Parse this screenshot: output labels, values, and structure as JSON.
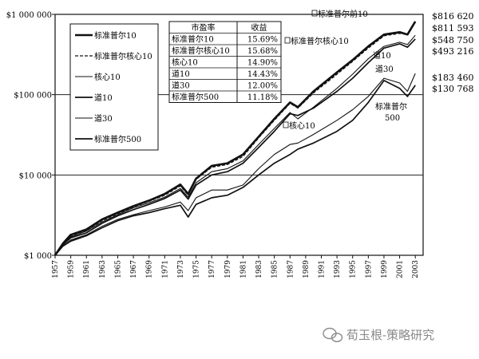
{
  "chart_data": {
    "type": "line",
    "title": "",
    "xlabel": "",
    "ylabel": "",
    "yscale": "log",
    "ylim": [
      1000,
      1000000
    ],
    "xlim": [
      1957,
      2004
    ],
    "grid": "horizontal lines at $10 000 and $100 000",
    "legend_placement": "top-left",
    "y_ticks": [
      {
        "value": 1000,
        "label": "$1 000"
      },
      {
        "value": 10000,
        "label": "$10 000"
      },
      {
        "value": 100000,
        "label": "$100 000"
      },
      {
        "value": 1000000,
        "label": "$1 000 000"
      }
    ],
    "x_ticks": [
      "1957",
      "1959",
      "1961",
      "1963",
      "1965",
      "1967",
      "1969",
      "1971",
      "1973",
      "1975",
      "1977",
      "1979",
      "1981",
      "1983",
      "1985",
      "1987",
      "1989",
      "1991",
      "1993",
      "1995",
      "1997",
      "1999",
      "2001",
      "2003"
    ],
    "legend": [
      "标准普尔10",
      "标准普尔核心10",
      "核心10",
      "道10",
      "道30",
      "标准普尔500"
    ],
    "table": {
      "headers": [
        "市盈率",
        "收益"
      ],
      "rows": [
        [
          "标准普尔10",
          "15.69%"
        ],
        [
          "标准普尔核心10",
          "15.68%"
        ],
        [
          "核心10",
          "14.90%"
        ],
        [
          "道10",
          "14.43%"
        ],
        [
          "道30",
          "12.00%"
        ],
        [
          "标准普尔500",
          "11.18%"
        ]
      ]
    },
    "end_labels": [
      "$816 620",
      "$811 593",
      "$548 750",
      "$493 216",
      "$183 460",
      "$130 768"
    ],
    "annotations": [
      "标准普尔前10",
      "标准普尔核心10",
      "道10",
      "道30",
      "核心10",
      "标准普尔500"
    ],
    "series": [
      {
        "name": "标准普尔10",
        "style": "thick",
        "x": [
          1957,
          1958,
          1959,
          1961,
          1963,
          1965,
          1967,
          1969,
          1971,
          1973,
          1974,
          1975,
          1977,
          1979,
          1981,
          1983,
          1985,
          1987,
          1988,
          1990,
          1993,
          1995,
          1997,
          1999,
          2001,
          2002,
          2003
        ],
        "y": [
          1000,
          1400,
          1800,
          2100,
          2800,
          3400,
          4100,
          4800,
          5800,
          7600,
          5800,
          9000,
          13000,
          14000,
          18000,
          30000,
          50000,
          80000,
          70000,
          110000,
          190000,
          270000,
          400000,
          560000,
          600000,
          560000,
          816620
        ]
      },
      {
        "name": "标准普尔核心10",
        "style": "dashed",
        "x": [
          1957,
          1958,
          1959,
          1961,
          1963,
          1965,
          1967,
          1969,
          1971,
          1973,
          1974,
          1975,
          1977,
          1979,
          1981,
          1983,
          1985,
          1987,
          1988,
          1990,
          1993,
          1995,
          1997,
          1999,
          2001,
          2002,
          2003
        ],
        "y": [
          1000,
          1400,
          1750,
          2050,
          2700,
          3300,
          4000,
          4700,
          5600,
          7300,
          5600,
          8800,
          12500,
          13500,
          17000,
          29000,
          48000,
          78000,
          68000,
          105000,
          180000,
          260000,
          380000,
          540000,
          580000,
          560000,
          811593
        ]
      },
      {
        "name": "核心10",
        "style": "thin",
        "x": [
          1957,
          1958,
          1959,
          1961,
          1963,
          1965,
          1967,
          1969,
          1971,
          1973,
          1974,
          1975,
          1977,
          1979,
          1981,
          1983,
          1985,
          1987,
          1988,
          1990,
          1993,
          1995,
          1997,
          1999,
          2001,
          2002,
          2003
        ],
        "y": [
          1000,
          1350,
          1700,
          2000,
          2600,
          3200,
          3900,
          4500,
          5300,
          6800,
          5300,
          8000,
          11000,
          12000,
          15000,
          24000,
          38000,
          60000,
          50000,
          70000,
          120000,
          180000,
          280000,
          400000,
          450000,
          420000,
          548750
        ]
      },
      {
        "name": "道10",
        "style": "medium",
        "x": [
          1957,
          1958,
          1959,
          1961,
          1963,
          1965,
          1967,
          1969,
          1971,
          1973,
          1974,
          1975,
          1977,
          1979,
          1981,
          1983,
          1985,
          1987,
          1988,
          1990,
          1993,
          1995,
          1997,
          1999,
          2001,
          2002,
          2003
        ],
        "y": [
          1000,
          1350,
          1650,
          1900,
          2500,
          3100,
          3700,
          4300,
          5100,
          6500,
          5000,
          7500,
          10000,
          11000,
          14000,
          22000,
          35000,
          58000,
          55000,
          68000,
          110000,
          160000,
          250000,
          380000,
          430000,
          390000,
          493216
        ]
      },
      {
        "name": "道30",
        "style": "thin",
        "x": [
          1957,
          1958,
          1959,
          1961,
          1963,
          1965,
          1967,
          1969,
          1971,
          1973,
          1974,
          1975,
          1977,
          1979,
          1981,
          1983,
          1985,
          1987,
          1988,
          1990,
          1993,
          1995,
          1997,
          1999,
          2001,
          2002,
          2003
        ],
        "y": [
          1000,
          1300,
          1550,
          1800,
          2300,
          2800,
          3200,
          3600,
          4000,
          4600,
          3600,
          5200,
          6500,
          6500,
          7500,
          12000,
          18000,
          24000,
          25000,
          32000,
          48000,
          65000,
          95000,
          160000,
          140000,
          110000,
          183460
        ]
      },
      {
        "name": "标准普尔500",
        "style": "medium",
        "x": [
          1957,
          1958,
          1959,
          1961,
          1963,
          1965,
          1967,
          1969,
          1971,
          1973,
          1974,
          1975,
          1977,
          1979,
          1981,
          1983,
          1985,
          1987,
          1988,
          1990,
          1993,
          1995,
          1997,
          1999,
          2001,
          2002,
          2003
        ],
        "y": [
          1000,
          1300,
          1500,
          1750,
          2200,
          2700,
          3100,
          3400,
          3800,
          4200,
          3000,
          4300,
          5200,
          5600,
          7000,
          10000,
          14000,
          18000,
          21000,
          25000,
          35000,
          48000,
          80000,
          150000,
          120000,
          95000,
          130768
        ]
      }
    ]
  },
  "watermark": "荀玉根-策略研究"
}
